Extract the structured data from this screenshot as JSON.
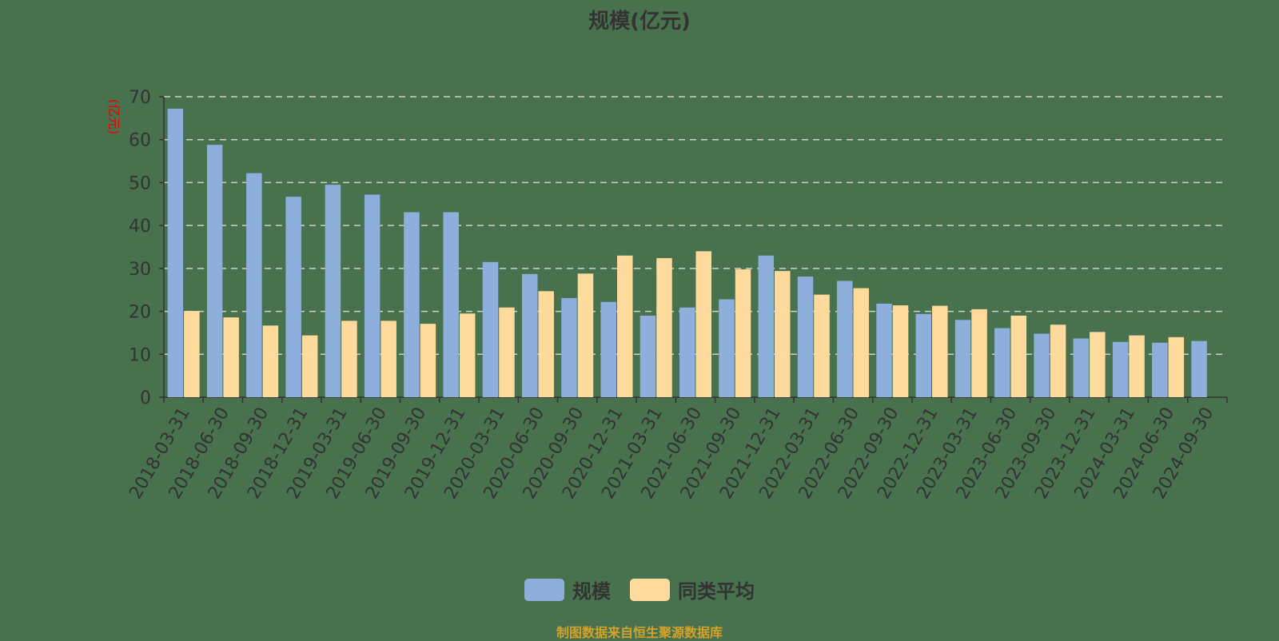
{
  "title": "规模(亿元)",
  "yunit": "(亿元)",
  "legend": [
    {
      "label": "规模",
      "color": "#8eaedb"
    },
    {
      "label": "同类平均",
      "color": "#fedb9d"
    }
  ],
  "source": "制图数据来自恒生聚源数据库",
  "chart_data": {
    "type": "bar",
    "title": "规模(亿元)",
    "xlabel": "",
    "ylabel": "(亿元)",
    "ylim": [
      0,
      70
    ],
    "yticks": [
      0,
      10,
      20,
      30,
      40,
      50,
      60,
      70
    ],
    "grid": true,
    "legend_position": "bottom",
    "categories": [
      "2018-03-31",
      "2018-06-30",
      "2018-09-30",
      "2018-12-31",
      "2019-03-31",
      "2019-06-30",
      "2019-09-30",
      "2019-12-31",
      "2020-03-31",
      "2020-06-30",
      "2020-09-30",
      "2020-12-31",
      "2021-03-31",
      "2021-06-30",
      "2021-09-30",
      "2021-12-31",
      "2022-03-31",
      "2022-06-30",
      "2022-09-30",
      "2022-12-31",
      "2023-03-31",
      "2023-06-30",
      "2023-09-30",
      "2023-12-31",
      "2024-03-31",
      "2024-06-30",
      "2024-09-30"
    ],
    "series": [
      {
        "name": "规模",
        "color": "#8eaedb",
        "values": [
          67.2,
          58.8,
          52.2,
          46.7,
          49.5,
          47.2,
          43.1,
          43.1,
          31.5,
          28.7,
          23.1,
          22.2,
          19.0,
          20.9,
          22.8,
          33.0,
          28.1,
          27.1,
          21.8,
          19.4,
          18.0,
          16.1,
          14.8,
          13.7,
          12.9,
          12.7,
          13.1
        ]
      },
      {
        "name": "同类平均",
        "color": "#fedb9d",
        "values": [
          20.1,
          18.6,
          16.7,
          14.4,
          17.8,
          17.8,
          17.1,
          19.5,
          20.9,
          24.7,
          28.8,
          33.0,
          32.4,
          34.0,
          29.8,
          29.4,
          23.9,
          25.4,
          21.4,
          21.3,
          20.5,
          19.0,
          16.9,
          15.2,
          14.4,
          14.0,
          null
        ]
      }
    ]
  }
}
